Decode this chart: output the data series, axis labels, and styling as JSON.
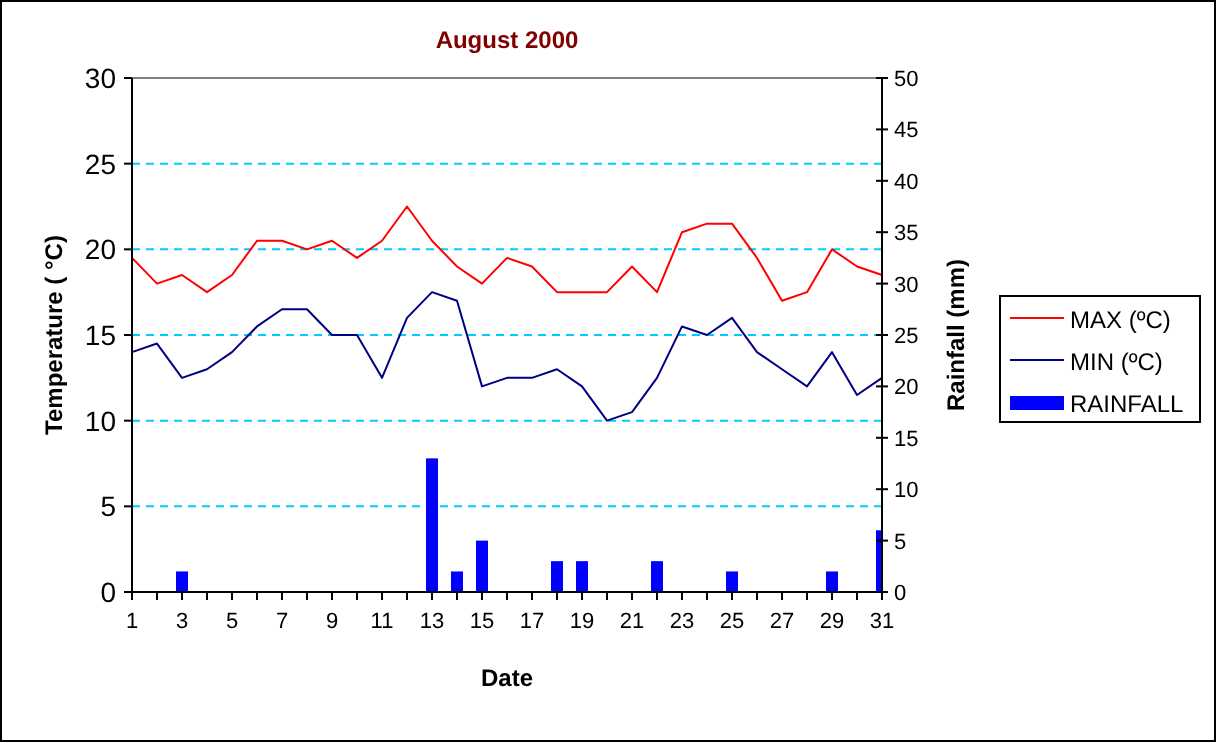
{
  "chart_data": {
    "type": "line",
    "title": "August 2000",
    "xlabel": "Date",
    "ylabel": "Temperature ( °C)",
    "y2label": "Rainfall (mm)",
    "x": [
      1,
      2,
      3,
      4,
      5,
      6,
      7,
      8,
      9,
      10,
      11,
      12,
      13,
      14,
      15,
      16,
      17,
      18,
      19,
      20,
      21,
      22,
      23,
      24,
      25,
      26,
      27,
      28,
      29,
      30,
      31
    ],
    "series": [
      {
        "name": "MAX (ºC)",
        "color": "#ff0000",
        "values": [
          19.5,
          18,
          18.5,
          17.5,
          18.5,
          20.5,
          20.5,
          20,
          20.5,
          19.5,
          20.5,
          22.5,
          20.5,
          19,
          18,
          19.5,
          19,
          17.5,
          17.5,
          17.5,
          19,
          17.5,
          21,
          21.5,
          21.5,
          19.5,
          17,
          17.5,
          20,
          19,
          18.5
        ]
      },
      {
        "name": "MIN (ºC)",
        "color": "#000080",
        "values": [
          14,
          14.5,
          12.5,
          13,
          14,
          15.5,
          16.5,
          16.5,
          15,
          15,
          12.5,
          16,
          17.5,
          17,
          12,
          12.5,
          12.5,
          13,
          12,
          10,
          10.5,
          12.5,
          15.5,
          15,
          16,
          14,
          13,
          12,
          14,
          11.5,
          12.5
        ]
      },
      {
        "name": "RAINFALL",
        "type": "bar",
        "axis": "y2",
        "color": "#0000ff",
        "values": [
          0,
          0,
          2,
          0,
          0,
          0,
          0,
          0,
          0,
          0,
          0,
          0,
          13,
          2,
          5,
          0,
          0,
          3,
          3,
          0,
          0,
          3,
          0,
          0,
          2,
          0,
          0,
          0,
          2,
          0,
          6
        ]
      }
    ],
    "xlim": [
      1,
      31
    ],
    "xticks": [
      1,
      3,
      5,
      7,
      9,
      11,
      13,
      15,
      17,
      19,
      21,
      23,
      25,
      27,
      29,
      31
    ],
    "ylim": [
      0,
      30
    ],
    "yticks": [
      0,
      5,
      10,
      15,
      20,
      25,
      30
    ],
    "y2lim": [
      0,
      50
    ],
    "y2ticks": [
      0,
      5,
      10,
      15,
      20,
      25,
      30,
      35,
      40,
      45,
      50
    ],
    "grid": "y",
    "legend": "right",
    "marker": "none",
    "line_style": "solid"
  }
}
